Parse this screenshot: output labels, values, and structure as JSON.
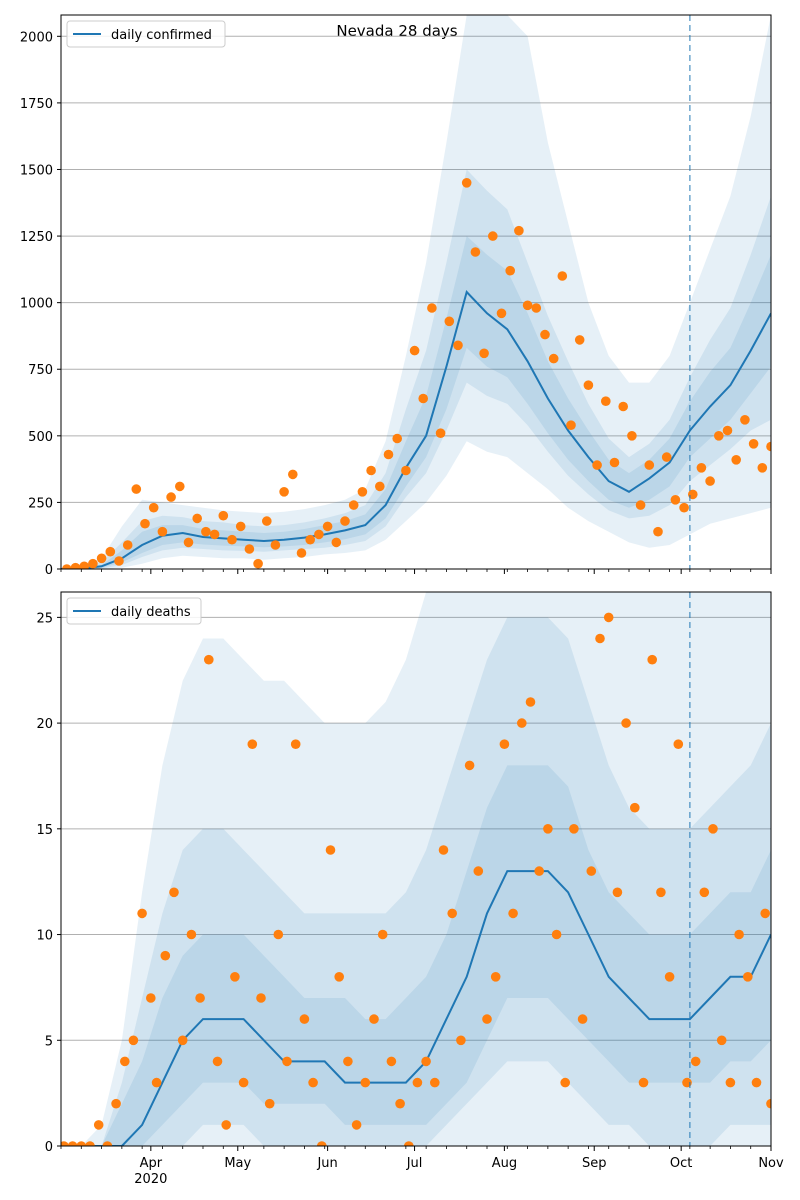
{
  "figure": {
    "title": "Nevada 28 days"
  },
  "chart_data": [
    {
      "type": "line",
      "panel": "top",
      "title": "Nevada 28 days",
      "xlabel": "",
      "ylabel": "",
      "legend": {
        "label": "daily confirmed",
        "placement": "top-left"
      },
      "colors": {
        "line": "#1f77b4",
        "band": "#1f77b4",
        "points": "#ff7f0e",
        "grid": "#b0b0b0",
        "forecast_marker": "#1f77b4"
      },
      "x_range": [
        "2020-03-01",
        "2020-11-01"
      ],
      "ylim": [
        0,
        2080
      ],
      "y_ticks": [
        0,
        250,
        500,
        750,
        1000,
        1250,
        1500,
        1750,
        2000
      ],
      "grid": "horizontal",
      "forecast_start": "2020-10-04",
      "line_series": {
        "name": "daily confirmed",
        "x": [
          "2020-03-01",
          "2020-03-08",
          "2020-03-15",
          "2020-03-22",
          "2020-03-29",
          "2020-04-05",
          "2020-04-12",
          "2020-04-19",
          "2020-04-26",
          "2020-05-03",
          "2020-05-10",
          "2020-05-17",
          "2020-05-24",
          "2020-05-31",
          "2020-06-07",
          "2020-06-14",
          "2020-06-21",
          "2020-06-28",
          "2020-07-05",
          "2020-07-12",
          "2020-07-19",
          "2020-07-26",
          "2020-08-02",
          "2020-08-09",
          "2020-08-16",
          "2020-08-23",
          "2020-08-30",
          "2020-09-06",
          "2020-09-13",
          "2020-09-20",
          "2020-09-27",
          "2020-10-04",
          "2020-10-11",
          "2020-10-18",
          "2020-10-25",
          "2020-11-01"
        ],
        "y": [
          0,
          2,
          10,
          40,
          90,
          125,
          135,
          120,
          115,
          110,
          105,
          110,
          118,
          130,
          145,
          165,
          240,
          380,
          500,
          760,
          1040,
          960,
          900,
          780,
          640,
          520,
          420,
          330,
          290,
          340,
          400,
          520,
          610,
          690,
          820,
          960
        ]
      },
      "bands": [
        {
          "level": "outer",
          "upper": [
            0,
            10,
            40,
            160,
            260,
            250,
            240,
            230,
            220,
            215,
            210,
            215,
            225,
            240,
            260,
            300,
            480,
            800,
            1150,
            1600,
            2080,
            2080,
            2080,
            2000,
            1600,
            1300,
            1000,
            800,
            700,
            700,
            800,
            1000,
            1200,
            1400,
            1700,
            2080
          ],
          "lower": [
            0,
            0,
            0,
            5,
            20,
            40,
            50,
            45,
            40,
            40,
            35,
            40,
            45,
            55,
            60,
            70,
            110,
            180,
            250,
            350,
            480,
            440,
            420,
            360,
            300,
            230,
            180,
            140,
            100,
            80,
            90,
            130,
            170,
            190,
            210,
            230
          ]
        },
        {
          "level": "middle",
          "upper": [
            0,
            6,
            25,
            100,
            180,
            200,
            195,
            180,
            175,
            165,
            160,
            165,
            175,
            190,
            210,
            240,
            360,
            600,
            820,
            1150,
            1500,
            1420,
            1350,
            1150,
            950,
            780,
            620,
            490,
            420,
            470,
            560,
            720,
            860,
            980,
            1180,
            1400
          ],
          "lower": [
            0,
            0,
            2,
            15,
            45,
            70,
            80,
            75,
            70,
            68,
            65,
            70,
            75,
            80,
            90,
            105,
            160,
            270,
            360,
            520,
            700,
            650,
            620,
            540,
            440,
            350,
            280,
            220,
            190,
            200,
            240,
            330,
            390,
            450,
            520,
            560
          ]
        },
        {
          "level": "inner",
          "upper": [
            0,
            4,
            15,
            70,
            140,
            165,
            165,
            150,
            145,
            140,
            135,
            140,
            150,
            165,
            180,
            205,
            300,
            480,
            650,
            940,
            1250,
            1180,
            1120,
            960,
            780,
            640,
            520,
            410,
            360,
            410,
            490,
            630,
            740,
            830,
            1000,
            1180
          ],
          "lower": [
            0,
            1,
            5,
            25,
            60,
            90,
            100,
            92,
            88,
            85,
            82,
            85,
            90,
            100,
            112,
            130,
            190,
            310,
            420,
            600,
            830,
            760,
            720,
            620,
            510,
            410,
            330,
            260,
            230,
            260,
            310,
            420,
            490,
            560,
            660,
            760
          ]
        }
      ],
      "points": {
        "name": "observed",
        "x": [
          "2020-03-03",
          "2020-03-06",
          "2020-03-09",
          "2020-03-12",
          "2020-03-15",
          "2020-03-18",
          "2020-03-21",
          "2020-03-24",
          "2020-03-27",
          "2020-03-30",
          "2020-04-02",
          "2020-04-05",
          "2020-04-08",
          "2020-04-11",
          "2020-04-14",
          "2020-04-17",
          "2020-04-20",
          "2020-04-23",
          "2020-04-26",
          "2020-04-29",
          "2020-05-02",
          "2020-05-05",
          "2020-05-08",
          "2020-05-11",
          "2020-05-14",
          "2020-05-17",
          "2020-05-20",
          "2020-05-23",
          "2020-05-26",
          "2020-05-29",
          "2020-06-01",
          "2020-06-04",
          "2020-06-07",
          "2020-06-10",
          "2020-06-13",
          "2020-06-16",
          "2020-06-19",
          "2020-06-22",
          "2020-06-25",
          "2020-06-28",
          "2020-07-01",
          "2020-07-04",
          "2020-07-07",
          "2020-07-10",
          "2020-07-13",
          "2020-07-16",
          "2020-07-19",
          "2020-07-22",
          "2020-07-25",
          "2020-07-28",
          "2020-07-31",
          "2020-08-03",
          "2020-08-06",
          "2020-08-09",
          "2020-08-12",
          "2020-08-15",
          "2020-08-18",
          "2020-08-21",
          "2020-08-24",
          "2020-08-27",
          "2020-08-30",
          "2020-09-02",
          "2020-09-05",
          "2020-09-08",
          "2020-09-11",
          "2020-09-14",
          "2020-09-17",
          "2020-09-20",
          "2020-09-23",
          "2020-09-26",
          "2020-09-29",
          "2020-10-02",
          "2020-10-05",
          "2020-10-08",
          "2020-10-11",
          "2020-10-14",
          "2020-10-17",
          "2020-10-20",
          "2020-10-23",
          "2020-10-26",
          "2020-10-29",
          "2020-11-01"
        ],
        "y": [
          0,
          5,
          10,
          20,
          40,
          65,
          30,
          90,
          300,
          170,
          230,
          140,
          270,
          310,
          100,
          190,
          140,
          130,
          200,
          110,
          160,
          75,
          20,
          180,
          90,
          290,
          355,
          60,
          110,
          130,
          160,
          100,
          180,
          240,
          290,
          370,
          310,
          430,
          490,
          370,
          820,
          640,
          980,
          510,
          930,
          840,
          1450,
          1190,
          810,
          1250,
          960,
          1120,
          1270,
          990,
          980,
          880,
          790,
          1100,
          540,
          860,
          690,
          390,
          630,
          400,
          610,
          500,
          240,
          390,
          140,
          420,
          260,
          230,
          280,
          380,
          330,
          500,
          520,
          410,
          560,
          470,
          380,
          460
        ]
      }
    },
    {
      "type": "line",
      "panel": "bottom",
      "title": "",
      "xlabel": "",
      "ylabel": "",
      "legend": {
        "label": "daily deaths",
        "placement": "top-left"
      },
      "colors": {
        "line": "#1f77b4",
        "band": "#1f77b4",
        "points": "#ff7f0e",
        "grid": "#b0b0b0",
        "forecast_marker": "#1f77b4"
      },
      "x_range": [
        "2020-03-01",
        "2020-11-01"
      ],
      "ylim": [
        0,
        26.2
      ],
      "y_ticks": [
        0,
        5,
        10,
        15,
        20,
        25
      ],
      "x_ticks": [
        "Apr",
        "May",
        "Jun",
        "Jul",
        "Aug",
        "Sep",
        "Oct",
        "Nov"
      ],
      "x_tick_dates": [
        "2020-04-01",
        "2020-05-01",
        "2020-06-01",
        "2020-07-01",
        "2020-08-01",
        "2020-09-01",
        "2020-10-01",
        "2020-11-01"
      ],
      "x_year_label": "2020",
      "grid": "horizontal",
      "forecast_start": "2020-10-04",
      "line_series": {
        "name": "daily deaths",
        "x": [
          "2020-03-01",
          "2020-03-08",
          "2020-03-15",
          "2020-03-22",
          "2020-03-29",
          "2020-04-05",
          "2020-04-12",
          "2020-04-19",
          "2020-04-26",
          "2020-05-03",
          "2020-05-10",
          "2020-05-17",
          "2020-05-24",
          "2020-05-31",
          "2020-06-07",
          "2020-06-14",
          "2020-06-21",
          "2020-06-28",
          "2020-07-05",
          "2020-07-12",
          "2020-07-19",
          "2020-07-26",
          "2020-08-02",
          "2020-08-09",
          "2020-08-16",
          "2020-08-23",
          "2020-08-30",
          "2020-09-06",
          "2020-09-13",
          "2020-09-20",
          "2020-09-27",
          "2020-10-04",
          "2020-10-11",
          "2020-10-18",
          "2020-10-25",
          "2020-11-01"
        ],
        "y": [
          0,
          0,
          0,
          0,
          1,
          3,
          5,
          6,
          6,
          6,
          5,
          4,
          4,
          4,
          3,
          3,
          3,
          3,
          4,
          6,
          8,
          11,
          13,
          13,
          13,
          12,
          10,
          8,
          7,
          6,
          6,
          6,
          7,
          8,
          8,
          10
        ]
      },
      "bands": [
        {
          "level": "outer",
          "upper": [
            0,
            0,
            1,
            5,
            12,
            18,
            22,
            24,
            24,
            23,
            22,
            22,
            21,
            20,
            20,
            20,
            21,
            23,
            26.2,
            26.2,
            26.2,
            26.2,
            26.2,
            26.2,
            26.2,
            26.2,
            26.2,
            26.2,
            26.2,
            26.2,
            26.2,
            26.2,
            26.2,
            26.2,
            26.2,
            26.2
          ],
          "lower": [
            0,
            0,
            0,
            0,
            0,
            0,
            0,
            0,
            0,
            0,
            0,
            0,
            0,
            0,
            0,
            0,
            0,
            0,
            0,
            0,
            0,
            0,
            0,
            0,
            0,
            0,
            0,
            0,
            0,
            0,
            0,
            0,
            0,
            0,
            0,
            0
          ]
        },
        {
          "level": "middle",
          "upper": [
            0,
            0,
            0,
            3,
            7,
            11,
            14,
            15,
            15,
            14,
            13,
            12,
            11,
            11,
            11,
            11,
            11,
            12,
            14,
            17,
            20,
            23,
            25,
            25,
            25,
            24,
            21,
            18,
            16,
            15,
            15,
            15,
            16,
            17,
            18,
            20
          ],
          "lower": [
            0,
            0,
            0,
            0,
            0,
            0,
            0,
            1,
            1,
            1,
            0,
            0,
            0,
            0,
            0,
            0,
            0,
            0,
            0,
            1,
            2,
            3,
            4,
            4,
            4,
            3,
            2,
            1,
            1,
            0,
            0,
            0,
            0,
            1,
            1,
            1
          ]
        },
        {
          "level": "inner",
          "upper": [
            0,
            0,
            0,
            2,
            4,
            7,
            9,
            10,
            10,
            10,
            9,
            8,
            7,
            7,
            7,
            6,
            6,
            7,
            8,
            10,
            13,
            16,
            18,
            18,
            18,
            17,
            14,
            12,
            11,
            10,
            10,
            10,
            11,
            12,
            12,
            14
          ],
          "lower": [
            0,
            0,
            0,
            0,
            0,
            1,
            2,
            3,
            3,
            3,
            2,
            2,
            2,
            2,
            1,
            1,
            1,
            1,
            1,
            2,
            3,
            5,
            7,
            7,
            7,
            6,
            5,
            4,
            3,
            3,
            3,
            3,
            3,
            4,
            4,
            5
          ]
        }
      ],
      "points": {
        "name": "observed",
        "x": [
          "2020-03-02",
          "2020-03-05",
          "2020-03-08",
          "2020-03-11",
          "2020-03-14",
          "2020-03-17",
          "2020-03-20",
          "2020-03-23",
          "2020-03-26",
          "2020-03-29",
          "2020-04-01",
          "2020-04-03",
          "2020-04-06",
          "2020-04-09",
          "2020-04-12",
          "2020-04-15",
          "2020-04-18",
          "2020-04-21",
          "2020-04-24",
          "2020-04-27",
          "2020-04-30",
          "2020-05-03",
          "2020-05-06",
          "2020-05-09",
          "2020-05-12",
          "2020-05-15",
          "2020-05-18",
          "2020-05-21",
          "2020-05-24",
          "2020-05-27",
          "2020-05-30",
          "2020-06-02",
          "2020-06-05",
          "2020-06-08",
          "2020-06-11",
          "2020-06-14",
          "2020-06-17",
          "2020-06-20",
          "2020-06-23",
          "2020-06-26",
          "2020-06-29",
          "2020-07-02",
          "2020-07-05",
          "2020-07-08",
          "2020-07-11",
          "2020-07-14",
          "2020-07-17",
          "2020-07-20",
          "2020-07-23",
          "2020-07-26",
          "2020-07-29",
          "2020-08-01",
          "2020-08-04",
          "2020-08-07",
          "2020-08-10",
          "2020-08-13",
          "2020-08-16",
          "2020-08-19",
          "2020-08-22",
          "2020-08-25",
          "2020-08-28",
          "2020-08-31",
          "2020-09-03",
          "2020-09-06",
          "2020-09-09",
          "2020-09-12",
          "2020-09-15",
          "2020-09-18",
          "2020-09-21",
          "2020-09-24",
          "2020-09-27",
          "2020-09-30",
          "2020-10-03",
          "2020-10-06",
          "2020-10-09",
          "2020-10-12",
          "2020-10-15",
          "2020-10-18",
          "2020-10-21",
          "2020-10-24",
          "2020-10-27",
          "2020-10-30",
          "2020-11-01"
        ],
        "y": [
          0,
          0,
          0,
          0,
          1,
          0,
          2,
          4,
          5,
          11,
          7,
          3,
          9,
          12,
          5,
          10,
          7,
          23,
          4,
          1,
          8,
          3,
          19,
          7,
          2,
          10,
          4,
          19,
          6,
          3,
          0,
          14,
          8,
          4,
          1,
          3,
          6,
          10,
          4,
          2,
          0,
          3,
          4,
          3,
          14,
          11,
          5,
          18,
          13,
          6,
          8,
          19,
          11,
          20,
          21,
          13,
          15,
          10,
          3,
          15,
          6,
          13,
          24,
          25,
          12,
          20,
          16,
          3,
          23,
          12,
          8,
          19,
          3,
          4,
          12,
          15,
          5,
          3,
          10,
          8,
          3,
          11,
          2
        ]
      }
    }
  ]
}
